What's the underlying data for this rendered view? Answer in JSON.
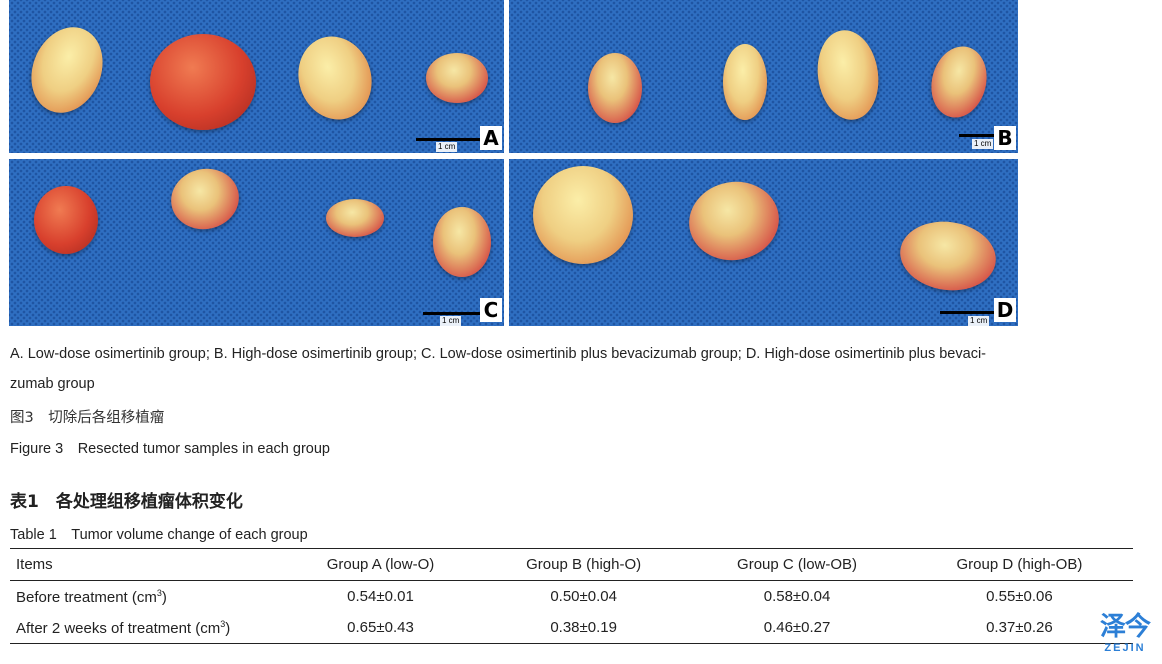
{
  "figure": {
    "panels": [
      {
        "letter": "A",
        "scale": "1 cm"
      },
      {
        "letter": "B",
        "scale": "1 cm"
      },
      {
        "letter": "C",
        "scale": "1 cm"
      },
      {
        "letter": "D",
        "scale": "1 cm"
      }
    ],
    "legend_line1": "A. Low-dose osimertinib group; B. High-dose osimertinib group; C. Low-dose osimertinib plus bevacizumab group; D. High-dose osimertinib plus bevaci-",
    "legend_line2": "zumab group",
    "caption_cn": "图3　切除后各组移植瘤",
    "caption_en": "Figure 3　Resected tumor samples in each group"
  },
  "table": {
    "title_cn": "表1　各处理组移植瘤体积变化",
    "title_en": "Table 1　Tumor volume change of each group",
    "headers": [
      "Items",
      "Group A (low-O)",
      "Group B (high-O)",
      "Group C (low-OB)",
      "Group D (high-OB)"
    ],
    "rows": [
      {
        "label": "Before treatment (cm",
        "unit_sup": "3",
        "label_end": ")",
        "values": [
          "0.54±0.01",
          "0.50±0.04",
          "0.58±0.04",
          "0.55±0.06"
        ]
      },
      {
        "label": "After 2 weeks of treatment (cm",
        "unit_sup": "3",
        "label_end": ")",
        "values": [
          "0.65±0.43",
          "0.38±0.19",
          "0.46±0.27",
          "0.37±0.26"
        ]
      }
    ]
  },
  "watermark": {
    "cn": "泽今",
    "en": "ZEJIN",
    "color": "#2c7fd6"
  },
  "colors": {
    "drape_blue": "#2f6fc2",
    "tumor_red": "#d8402d",
    "tumor_yellow": "#efcf83"
  }
}
